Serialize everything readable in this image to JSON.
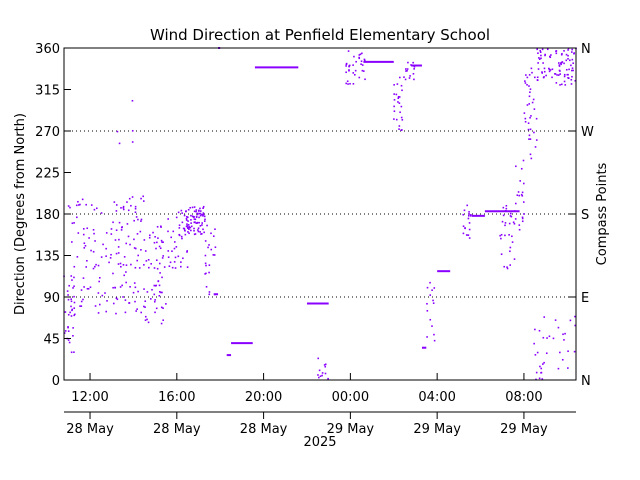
{
  "chart_data": {
    "type": "scatter",
    "title": "Wind Direction at Penfield Elementary School",
    "ylabel": "Direction (Degrees from North)",
    "y2label": "Compass Points",
    "ylim": [
      0,
      360
    ],
    "yticks": [
      0,
      45,
      90,
      135,
      180,
      225,
      270,
      315,
      360
    ],
    "y2ticks": [
      {
        "value": 0,
        "label": "N"
      },
      {
        "value": 90,
        "label": "E"
      },
      {
        "value": 180,
        "label": "S"
      },
      {
        "value": 270,
        "label": "W"
      },
      {
        "value": 360,
        "label": "N"
      }
    ],
    "gridlines_y": [
      90,
      180,
      270
    ],
    "xlim_hours": [
      10.8,
      34.4
    ],
    "xticks": [
      {
        "hour": 12,
        "time": "12:00",
        "date": "28 May"
      },
      {
        "hour": 16,
        "time": "16:00",
        "date": "28 May"
      },
      {
        "hour": 20,
        "time": "20:00",
        "date": "28 May"
      },
      {
        "hour": 24,
        "time": "00:00",
        "date": "29 May"
      },
      {
        "hour": 28,
        "time": "04:00",
        "date": "29 May"
      },
      {
        "hour": 32,
        "time": "08:00",
        "date": "29 May"
      }
    ],
    "xlabel_year": "2025",
    "color": "#8a00ff",
    "scatter_ranges": [
      {
        "h0": 10.8,
        "h1": 11.3,
        "lo": 25,
        "hi": 120,
        "n": 28
      },
      {
        "h0": 11.0,
        "h1": 14.5,
        "lo": 70,
        "hi": 200,
        "n": 160
      },
      {
        "h0": 13.2,
        "h1": 14.0,
        "lo": 255,
        "hi": 310,
        "n": 5
      },
      {
        "h0": 14.5,
        "h1": 15.5,
        "lo": 60,
        "hi": 170,
        "n": 60
      },
      {
        "h0": 15.5,
        "h1": 16.5,
        "lo": 120,
        "hi": 185,
        "n": 40
      },
      {
        "h0": 16.4,
        "h1": 17.3,
        "lo": 158,
        "hi": 188,
        "n": 80
      },
      {
        "h0": 17.3,
        "h1": 17.8,
        "lo": 92,
        "hi": 170,
        "n": 22
      },
      {
        "h0": 22.5,
        "h1": 23.0,
        "lo": 0,
        "hi": 25,
        "n": 12
      },
      {
        "h0": 23.8,
        "h1": 24.7,
        "lo": 320,
        "hi": 360,
        "n": 35
      },
      {
        "h0": 26.0,
        "h1": 26.4,
        "lo": 270,
        "hi": 330,
        "n": 25
      },
      {
        "h0": 26.4,
        "h1": 27.0,
        "lo": 325,
        "hi": 345,
        "n": 15
      },
      {
        "h0": 27.5,
        "h1": 27.9,
        "lo": 40,
        "hi": 110,
        "n": 14
      },
      {
        "h0": 29.2,
        "h1": 29.6,
        "lo": 150,
        "hi": 190,
        "n": 18
      },
      {
        "h0": 30.9,
        "h1": 31.6,
        "lo": 120,
        "hi": 190,
        "n": 30
      },
      {
        "h0": 31.6,
        "h1": 32.0,
        "lo": 160,
        "hi": 240,
        "n": 20
      },
      {
        "h0": 32.0,
        "h1": 32.6,
        "lo": 240,
        "hi": 340,
        "n": 35
      },
      {
        "h0": 32.6,
        "h1": 34.4,
        "lo": 320,
        "hi": 360,
        "n": 90
      },
      {
        "h0": 32.4,
        "h1": 34.4,
        "lo": 0,
        "hi": 70,
        "n": 35
      }
    ],
    "segments": [
      {
        "h0": 18.3,
        "h1": 18.5,
        "value": 27
      },
      {
        "h0": 18.5,
        "h1": 19.5,
        "value": 40
      },
      {
        "h0": 19.6,
        "h1": 21.6,
        "value": 339
      },
      {
        "h0": 22.0,
        "h1": 23.0,
        "value": 83
      },
      {
        "h0": 24.6,
        "h1": 26.0,
        "value": 345
      },
      {
        "h0": 26.8,
        "h1": 27.3,
        "value": 341
      },
      {
        "h0": 27.3,
        "h1": 27.5,
        "value": 35
      },
      {
        "h0": 28.0,
        "h1": 28.6,
        "value": 118
      },
      {
        "h0": 29.6,
        "h1": 30.2,
        "value": 178
      },
      {
        "h0": 30.2,
        "h1": 31.8,
        "value": 183
      },
      {
        "h0": 17.7,
        "h1": 17.9,
        "value": 93
      },
      {
        "h0": 17.9,
        "h1": 18.0,
        "value": 360
      }
    ]
  }
}
